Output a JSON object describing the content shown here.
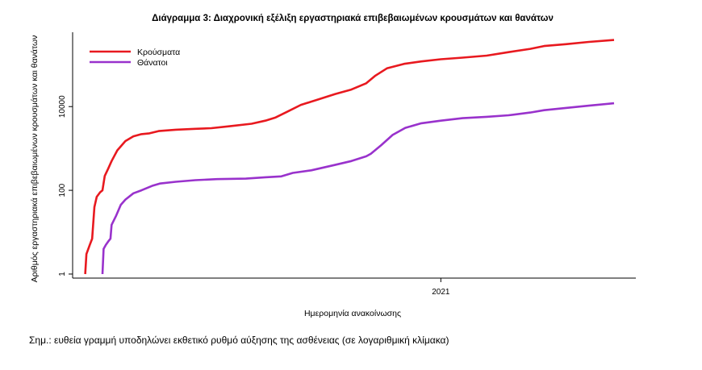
{
  "chart_data": {
    "type": "line",
    "title": "Διάγραμμα 3: Διαχρονική εξέλιξη εργαστηριακά επιβεβαιωμένων κρουσμάτων και θανάτων",
    "xlabel": "Ημερομηνία ανακοίνωσης",
    "ylabel": "Αριθμός εργαστηριακά επιβεβαιωμένων κρουσμάτων και θανάτων",
    "yscale": "log",
    "ylim": [
      0.8,
      500000
    ],
    "yticks": [
      {
        "value": 1,
        "label": "1"
      },
      {
        "value": 100,
        "label": "100"
      },
      {
        "value": 10000,
        "label": "10000"
      }
    ],
    "xlim": [
      "2020-02-15",
      "2021-06-20"
    ],
    "xticks": [
      {
        "value": "2021-01-01",
        "label": "2021"
      }
    ],
    "grid": false,
    "legend": "top-left",
    "series": [
      {
        "name": "Κρούσματα",
        "color": "#e8191f",
        "points": [
          [
            "2020-02-26",
            1
          ],
          [
            "2020-02-27",
            3
          ],
          [
            "2020-03-01",
            5
          ],
          [
            "2020-03-03",
            7
          ],
          [
            "2020-03-05",
            40
          ],
          [
            "2020-03-07",
            70
          ],
          [
            "2020-03-10",
            90
          ],
          [
            "2020-03-12",
            100
          ],
          [
            "2020-03-14",
            220
          ],
          [
            "2020-03-17",
            330
          ],
          [
            "2020-03-20",
            500
          ],
          [
            "2020-03-25",
            900
          ],
          [
            "2020-04-01",
            1500
          ],
          [
            "2020-04-08",
            1950
          ],
          [
            "2020-04-15",
            2200
          ],
          [
            "2020-04-22",
            2300
          ],
          [
            "2020-04-30",
            2600
          ],
          [
            "2020-05-15",
            2800
          ],
          [
            "2020-06-01",
            2950
          ],
          [
            "2020-06-15",
            3050
          ],
          [
            "2020-07-01",
            3400
          ],
          [
            "2020-07-20",
            3900
          ],
          [
            "2020-08-01",
            4600
          ],
          [
            "2020-08-10",
            5500
          ],
          [
            "2020-08-20",
            7500
          ],
          [
            "2020-09-01",
            11000
          ],
          [
            "2020-09-15",
            14500
          ],
          [
            "2020-10-01",
            20000
          ],
          [
            "2020-10-15",
            25500
          ],
          [
            "2020-10-28",
            36000
          ],
          [
            "2020-11-05",
            55000
          ],
          [
            "2020-11-15",
            82000
          ],
          [
            "2020-11-30",
            105000
          ],
          [
            "2020-12-15",
            120000
          ],
          [
            "2021-01-01",
            135000
          ],
          [
            "2021-01-20",
            148000
          ],
          [
            "2021-02-10",
            165000
          ],
          [
            "2021-03-01",
            200000
          ],
          [
            "2021-03-20",
            240000
          ],
          [
            "2021-04-01",
            280000
          ],
          [
            "2021-04-20",
            310000
          ],
          [
            "2021-05-10",
            350000
          ],
          [
            "2021-06-01",
            390000
          ]
        ]
      },
      {
        "name": "Θάνατοι",
        "color": "#9932cc",
        "points": [
          [
            "2020-03-12",
            1
          ],
          [
            "2020-03-13",
            4
          ],
          [
            "2020-03-15",
            5
          ],
          [
            "2020-03-17",
            6
          ],
          [
            "2020-03-19",
            7
          ],
          [
            "2020-03-20",
            15
          ],
          [
            "2020-03-24",
            25
          ],
          [
            "2020-03-28",
            45
          ],
          [
            "2020-04-01",
            60
          ],
          [
            "2020-04-08",
            85
          ],
          [
            "2020-04-15",
            100
          ],
          [
            "2020-04-25",
            130
          ],
          [
            "2020-05-01",
            145
          ],
          [
            "2020-05-15",
            160
          ],
          [
            "2020-06-01",
            175
          ],
          [
            "2020-06-20",
            185
          ],
          [
            "2020-07-15",
            190
          ],
          [
            "2020-08-01",
            205
          ],
          [
            "2020-08-15",
            215
          ],
          [
            "2020-08-25",
            260
          ],
          [
            "2020-09-10",
            300
          ],
          [
            "2020-09-30",
            400
          ],
          [
            "2020-10-15",
            500
          ],
          [
            "2020-10-28",
            650
          ],
          [
            "2020-11-01",
            750
          ],
          [
            "2020-11-10",
            1200
          ],
          [
            "2020-11-20",
            2100
          ],
          [
            "2020-12-01",
            3100
          ],
          [
            "2020-12-15",
            4000
          ],
          [
            "2021-01-01",
            4600
          ],
          [
            "2021-01-20",
            5300
          ],
          [
            "2021-02-10",
            5700
          ],
          [
            "2021-03-01",
            6200
          ],
          [
            "2021-03-20",
            7200
          ],
          [
            "2021-04-01",
            8200
          ],
          [
            "2021-04-20",
            9300
          ],
          [
            "2021-05-10",
            10500
          ],
          [
            "2021-06-01",
            12000
          ]
        ]
      }
    ]
  },
  "note": "Σημ.: ευθεία γραμμή υποδηλώνει εκθετικό ρυθμό αύξησης της ασθένειας (σε λογαριθμική κλίμακα)"
}
